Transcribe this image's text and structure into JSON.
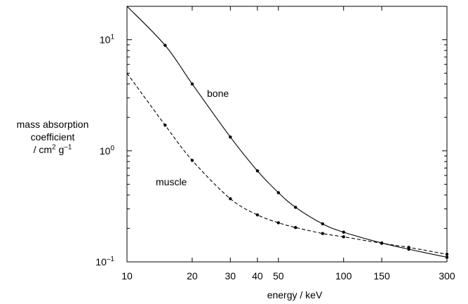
{
  "chart_data": {
    "type": "line",
    "xscale": "log",
    "yscale": "log",
    "xlim": [
      10,
      300
    ],
    "ylim": [
      0.1,
      20
    ],
    "grid": false,
    "xlabel": "energy / keV",
    "ylabel": {
      "line1": "mass absorption",
      "line2": "coefficient",
      "line3_prefix": "/ cm",
      "line3_exp1": "2",
      "line3_mid": " g",
      "line3_exp2": "–1"
    },
    "x_ticks": [
      10,
      20,
      30,
      40,
      50,
      100,
      150,
      300
    ],
    "y_ticks": [
      {
        "value": 0.1,
        "base": "10",
        "exp": "–1"
      },
      {
        "value": 1,
        "base": "10",
        "exp": "0"
      },
      {
        "value": 10,
        "base": "10",
        "exp": "1"
      }
    ],
    "series": [
      {
        "name": "bone",
        "style": "solid",
        "color": "#000000",
        "x": [
          10,
          15,
          20,
          30,
          40,
          50,
          60,
          80,
          100,
          150,
          200,
          300
        ],
        "y": [
          20.0,
          8.9,
          4.0,
          1.33,
          0.66,
          0.42,
          0.31,
          0.22,
          0.185,
          0.148,
          0.13,
          0.11
        ]
      },
      {
        "name": "muscle",
        "style": "dashed",
        "color": "#000000",
        "x": [
          10,
          15,
          20,
          30,
          40,
          50,
          60,
          80,
          100,
          150,
          200,
          300
        ],
        "y": [
          5.0,
          1.7,
          0.82,
          0.37,
          0.265,
          0.225,
          0.204,
          0.18,
          0.168,
          0.147,
          0.135,
          0.117
        ]
      }
    ]
  }
}
